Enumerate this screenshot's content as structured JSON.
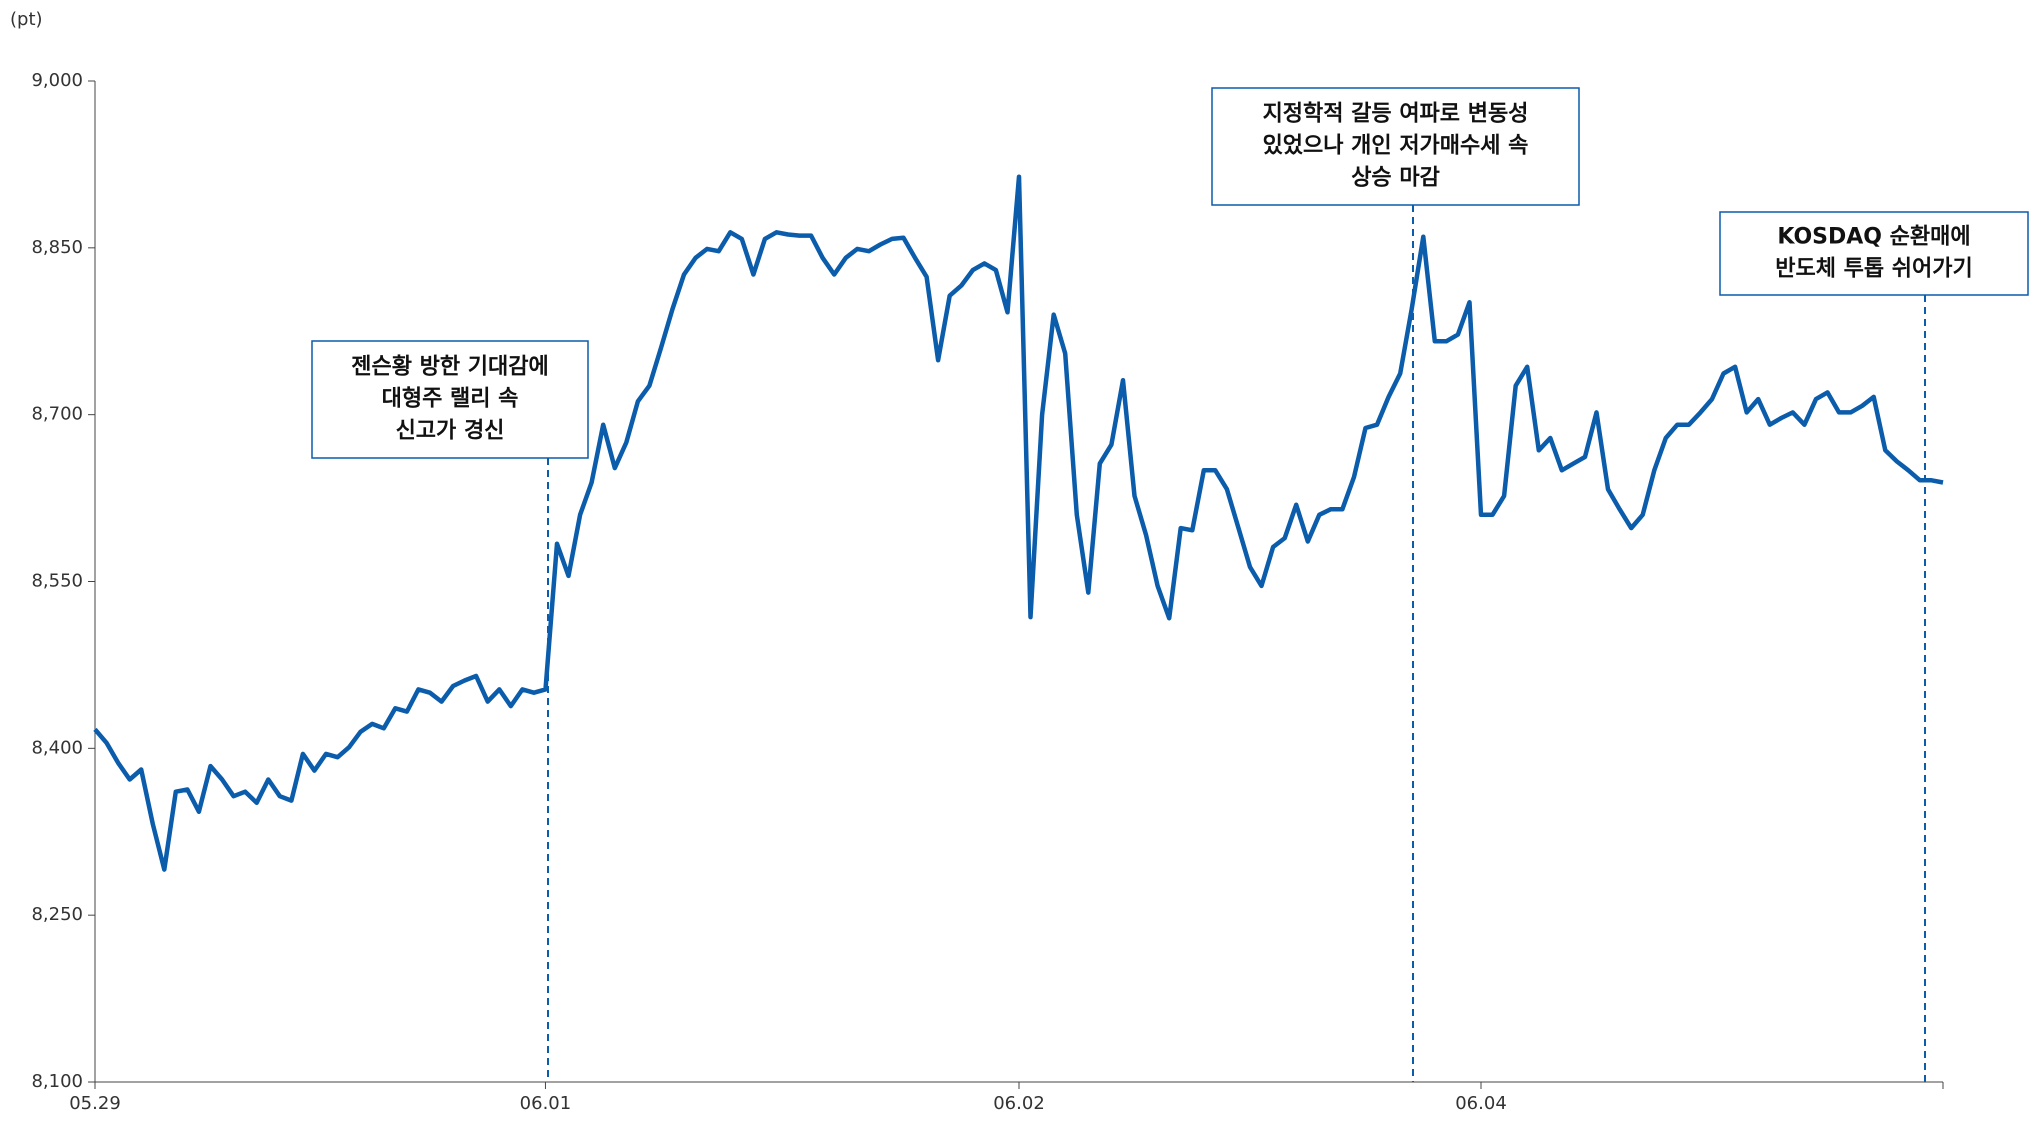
{
  "chart_data": {
    "type": "line",
    "y_label": "(pt)",
    "categories": [
      "05.29",
      null,
      null,
      null,
      null,
      null,
      null,
      null,
      null,
      null,
      null,
      null,
      null,
      null,
      null,
      null,
      null,
      null,
      null,
      null,
      null,
      null,
      null,
      null,
      null,
      null,
      null,
      null,
      null,
      null,
      null,
      null,
      null,
      null,
      null,
      null,
      null,
      null,
      null,
      "06.01",
      null,
      null,
      null,
      null,
      null,
      null,
      null,
      null,
      null,
      null,
      null,
      null,
      null,
      null,
      null,
      null,
      null,
      null,
      null,
      null,
      null,
      null,
      null,
      null,
      null,
      null,
      null,
      null,
      null,
      null,
      null,
      null,
      null,
      null,
      null,
      null,
      null,
      null,
      null,
      null,
      "06.02",
      null,
      null,
      null,
      null,
      null,
      null,
      null,
      null,
      null,
      null,
      null,
      null,
      null,
      null,
      null,
      null,
      null,
      null,
      null,
      null,
      null,
      null,
      null,
      null,
      null,
      null,
      null,
      null,
      null,
      null,
      null,
      null,
      null,
      null,
      null,
      null,
      null,
      null,
      null,
      "06.04",
      null,
      null,
      null,
      null,
      null,
      null,
      null,
      null,
      null,
      null,
      null,
      null,
      null,
      null,
      null,
      null,
      null,
      null,
      null,
      null,
      null,
      null,
      null,
      null,
      null,
      null,
      null,
      null,
      null,
      null,
      null,
      null,
      null,
      null,
      null,
      null,
      null,
      null,
      null,
      null
    ],
    "series": [
      {
        "color": "#0b5cab",
        "values": [
          8417,
          8405,
          8387,
          8372,
          8381,
          8332,
          8291,
          8361,
          8363,
          8343,
          8384,
          8372,
          8357,
          8361,
          8351,
          8372,
          8357,
          8353,
          8395,
          8380,
          8395,
          8392,
          8401,
          8415,
          8422,
          8418,
          8436,
          8433,
          8453,
          8450,
          8442,
          8456,
          8461,
          8465,
          8442,
          8453,
          8438,
          8453,
          8450,
          8453,
          8584,
          8555,
          8610,
          8639,
          8691,
          8652,
          8675,
          8712,
          8726,
          8760,
          8795,
          8826,
          8841,
          8849,
          8847,
          8864,
          8858,
          8826,
          8858,
          8864,
          8862,
          8861,
          8861,
          8841,
          8826,
          8841,
          8849,
          8847,
          8853,
          8858,
          8859,
          8841,
          8824,
          8749,
          8807,
          8816,
          8830,
          8836,
          8830,
          8792,
          8914,
          8518,
          8700,
          8790,
          8755,
          8610,
          8540,
          8656,
          8673,
          8731,
          8627,
          8592,
          8546,
          8517,
          8598,
          8596,
          8650,
          8650,
          8633,
          8598,
          8563,
          8546,
          8581,
          8589,
          8619,
          8586,
          8610,
          8615,
          8615,
          8644,
          8688,
          8691,
          8716,
          8737,
          8795,
          8860,
          8766,
          8766,
          8772,
          8801,
          8610,
          8610,
          8627,
          8726,
          8743,
          8668,
          8679,
          8650,
          8656,
          8662,
          8702,
          8633,
          8615,
          8598,
          8610,
          8650,
          8679,
          8691,
          8691,
          8702,
          8714,
          8737,
          8743,
          8702,
          8714,
          8691,
          8697,
          8702,
          8691,
          8714,
          8720,
          8702,
          8702,
          8708,
          8716,
          8668,
          8658,
          8650,
          8641,
          8641,
          8639
        ]
      }
    ],
    "ylim": [
      8100,
      9000
    ],
    "yticks": [
      {
        "value": 8100,
        "label": "8,100"
      },
      {
        "value": 8250,
        "label": "8,250"
      },
      {
        "value": 8400,
        "label": "8,400"
      },
      {
        "value": 8550,
        "label": "8,550"
      },
      {
        "value": 8700,
        "label": "8,700"
      },
      {
        "value": 8850,
        "label": "8,850"
      },
      {
        "value": 9000,
        "label": "9,000"
      }
    ],
    "annotations": [
      {
        "lines": [
          "젠슨황 방한 기대감에",
          "대형주 랠리 속",
          "신고가 경신"
        ]
      },
      {
        "lines": [
          "지정학적 갈등 여파로 변동성",
          "있었으나 개인 저가매수세 속",
          "상승 마감"
        ]
      },
      {
        "lines": [
          "KOSDAQ 순환매에",
          "반도체 투톱 쉬어가기"
        ]
      }
    ]
  }
}
